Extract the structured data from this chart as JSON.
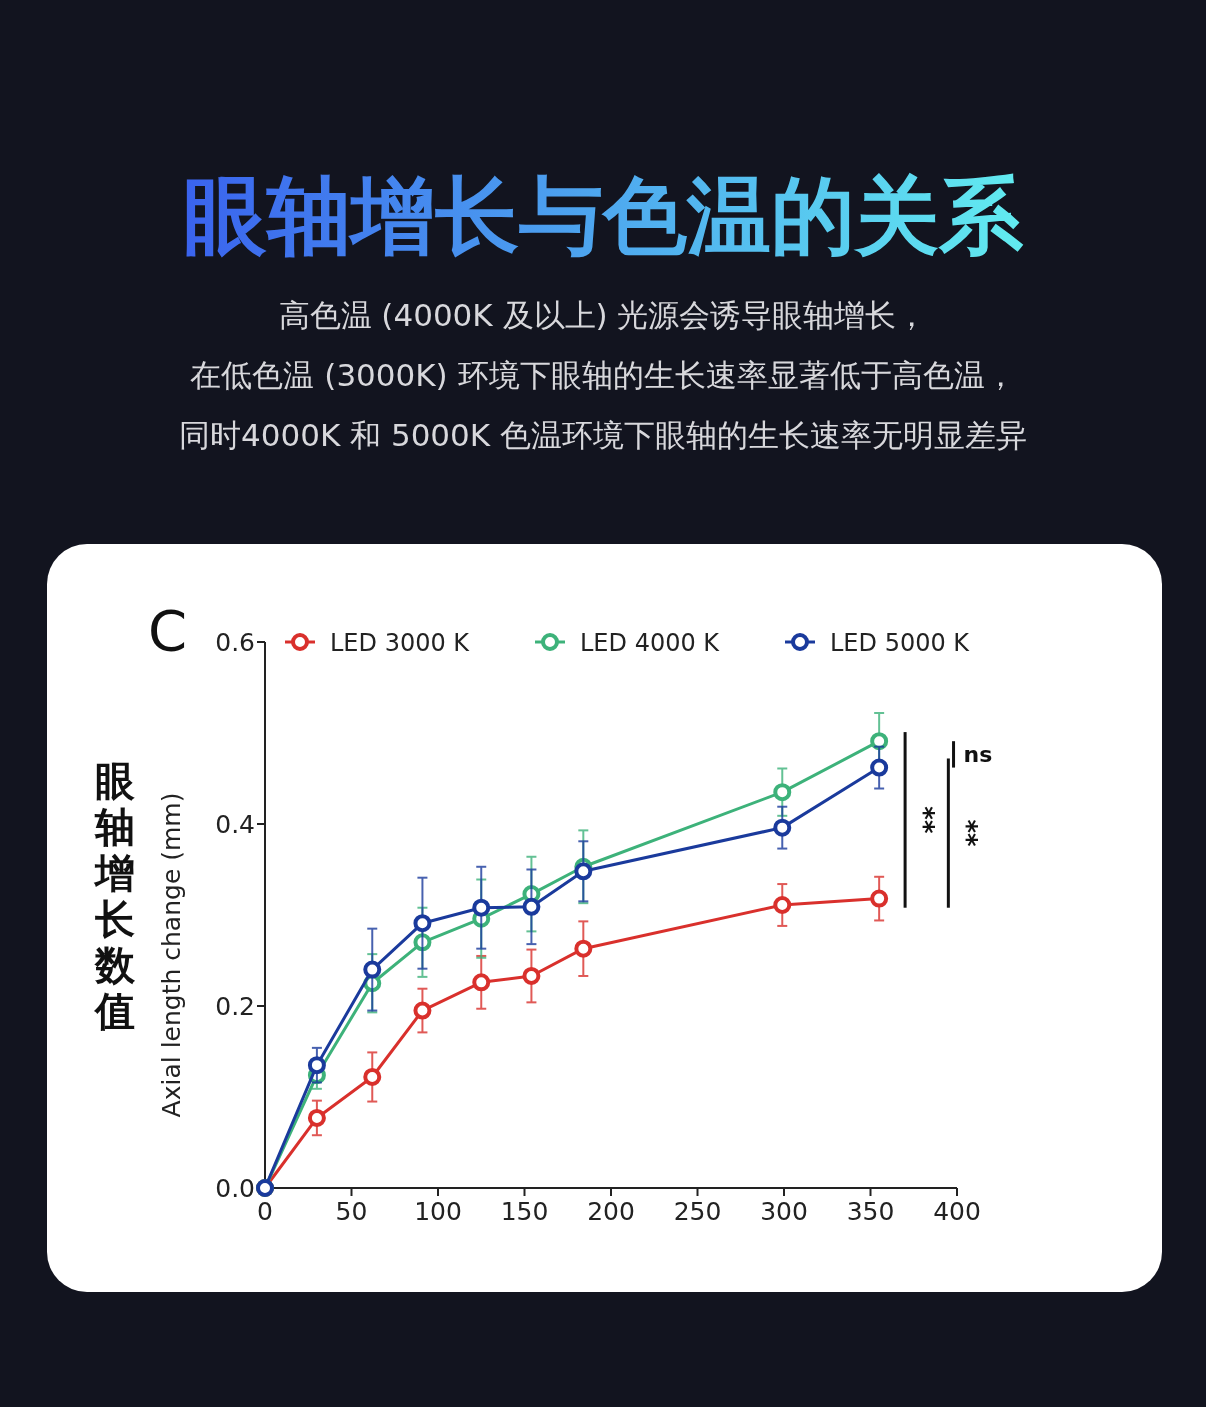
{
  "chart_data": {
    "type": "line",
    "title": "眼轴增长与色温的关系",
    "subtitle": "高色温 (4000K 及以上) 光源会诱导眼轴增长，在低色温 (3000K) 环境下眼轴的生长速率显著低于高色温，同时4000K 和 5000K 色温环境下眼轴的生长速率无明显差异",
    "xlabel": null,
    "ylabel": "Axial length change (mm)",
    "annotations": [
      "C",
      "眼轴增长数值",
      "**",
      "**",
      "ns"
    ],
    "x": [
      0,
      30,
      62,
      91,
      125,
      154,
      184,
      299,
      355
    ],
    "series": [
      {
        "name": "LED 3000 K",
        "color": "#d9302c",
        "values": [
          0,
          0.077,
          0.122,
          0.195,
          0.226,
          0.233,
          0.263,
          0.311,
          0.318
        ],
        "errors": [
          null,
          0.019,
          0.027,
          0.024,
          0.029,
          0.029,
          0.03,
          0.023,
          0.024
        ]
      },
      {
        "name": "LED 4000 K",
        "color": "#3db27a",
        "values": [
          0,
          0.124,
          0.225,
          0.27,
          0.296,
          0.323,
          0.353,
          0.435,
          0.491
        ],
        "errors": [
          null,
          0.015,
          0.032,
          0.038,
          0.043,
          0.041,
          0.04,
          0.026,
          0.031
        ]
      },
      {
        "name": "LED 5000 K",
        "color": "#1a3a9c",
        "values": [
          0,
          0.135,
          0.24,
          0.291,
          0.308,
          0.309,
          0.348,
          0.396,
          0.462
        ],
        "errors": [
          null,
          0.019,
          0.045,
          0.05,
          0.045,
          0.041,
          0.033,
          0.023,
          0.023
        ]
      }
    ],
    "xlim": [
      0,
      400
    ],
    "xticks": [
      0,
      50,
      100,
      150,
      200,
      250,
      300,
      350,
      400
    ],
    "ylim": [
      0,
      0.6
    ],
    "yticks": [
      {
        "value": 0,
        "label": "0.0"
      },
      {
        "value": 0.2,
        "label": "0.2"
      },
      {
        "value": 0.4,
        "label": "0.4"
      },
      {
        "value": 0.6,
        "label": "0.6"
      }
    ],
    "legend": "top",
    "marker": "circle",
    "line_style": "solid",
    "grid": false
  }
}
